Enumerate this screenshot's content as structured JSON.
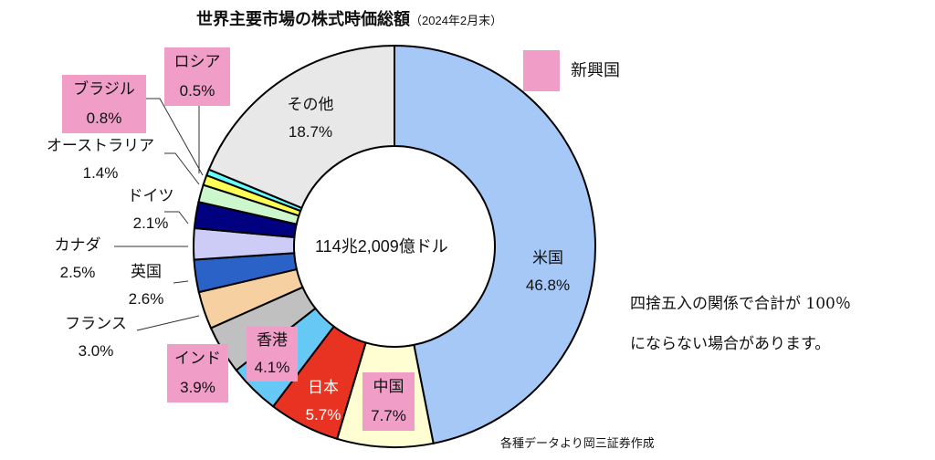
{
  "chart_data": {
    "type": "pie",
    "title": "世界主要市場の株式時価総額",
    "subtitle": "（2024年2月末）",
    "center_label": "114兆2,009億ドル",
    "unit": "%",
    "slices": [
      {
        "label": "米国",
        "value": 46.8,
        "color": "#a6c8f7",
        "emerging": false
      },
      {
        "label": "中国",
        "value": 7.7,
        "color": "#fffdd2",
        "emerging": true
      },
      {
        "label": "日本",
        "value": 5.7,
        "color": "#e83323",
        "emerging": false
      },
      {
        "label": "香港",
        "value": 4.1,
        "color": "#66c8f5",
        "emerging": true
      },
      {
        "label": "インド",
        "value": 3.9,
        "color": "#c0c0c0",
        "emerging": true
      },
      {
        "label": "フランス",
        "value": 3.0,
        "color": "#f7d0a2",
        "emerging": false
      },
      {
        "label": "英国",
        "value": 2.6,
        "color": "#2a62c8",
        "emerging": false
      },
      {
        "label": "カナダ",
        "value": 2.5,
        "color": "#ccccf7",
        "emerging": false
      },
      {
        "label": "ドイツ",
        "value": 2.1,
        "color": "#000080",
        "emerging": false
      },
      {
        "label": "オーストラリア",
        "value": 1.4,
        "color": "#ccf7cc",
        "emerging": false
      },
      {
        "label": "ブラジル",
        "value": 0.8,
        "color": "#ffff55",
        "emerging": true
      },
      {
        "label": "ロシア",
        "value": 0.5,
        "color": "#66ffff",
        "emerging": true
      },
      {
        "label": "その他",
        "value": 18.7,
        "color": "#e8e8e8",
        "emerging": false
      }
    ],
    "value_labels": [
      "46.8%",
      "7.7%",
      "5.7%",
      "4.1%",
      "3.9%",
      "3.0%",
      "2.6%",
      "2.5%",
      "2.1%",
      "1.4%",
      "0.8%",
      "0.5%",
      "18.7%"
    ],
    "legend": {
      "label": "新興国",
      "color": "#f09ec8",
      "placement": "top-right"
    }
  },
  "note": [
    "四捨五入の関係で合計が 100％",
    "にならない場合があります。"
  ],
  "source": "各種データより岡三証券作成"
}
